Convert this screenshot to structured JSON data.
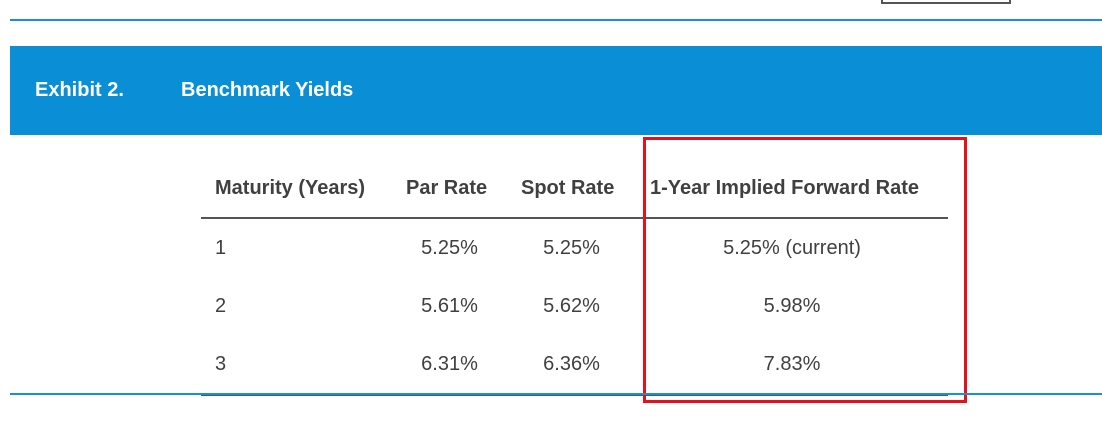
{
  "exhibit": {
    "label": "Exhibit 2.",
    "title": "Benchmark Yields"
  },
  "table": {
    "headers": [
      "Maturity (Years)",
      "Par Rate",
      "Spot Rate",
      "1-Year Implied Forward Rate"
    ],
    "rows": [
      [
        "1",
        "5.25%",
        "5.25%",
        "5.25% (current)"
      ],
      [
        "2",
        "5.61%",
        "5.62%",
        "5.98%"
      ],
      [
        "3",
        "6.31%",
        "6.36%",
        "7.83%"
      ]
    ]
  },
  "colors": {
    "header_bar": "#0a8ed6",
    "rule": "#1a8fd8",
    "highlight": "#e3121b",
    "text": "#404040"
  }
}
